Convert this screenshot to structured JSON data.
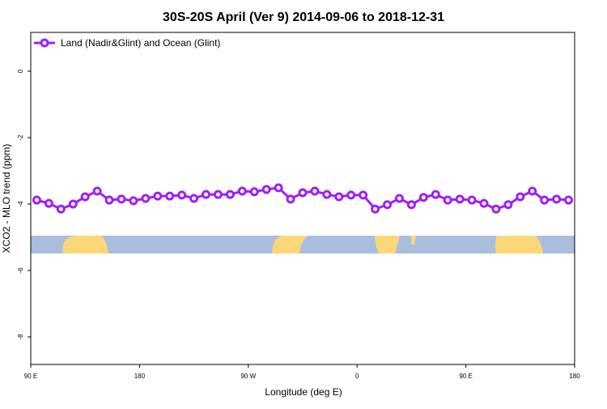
{
  "chart_data": {
    "type": "line",
    "title": "30S-20S April (Ver 9)   2014-09-06 to 2018-12-31",
    "x_label": "Longitude (deg E)",
    "y_label": "XCO2 - MLO trend (ppm)",
    "x": [
      95,
      105,
      115,
      125,
      135,
      145,
      155,
      165,
      175,
      185,
      195,
      205,
      215,
      225,
      235,
      245,
      255,
      265,
      275,
      285,
      295,
      305,
      315,
      325,
      335,
      345,
      355,
      365,
      375,
      385,
      395,
      405,
      415,
      425,
      435,
      445,
      455,
      465,
      475,
      485,
      495,
      505,
      515,
      525,
      535
    ],
    "series": [
      {
        "name": "Land (Nadir&Glint) and Ocean (Glint)",
        "color": "#a020f0",
        "values": [
          -3.88,
          -3.98,
          -4.15,
          -4.0,
          -3.78,
          -3.61,
          -3.88,
          -3.85,
          -3.9,
          -3.83,
          -3.76,
          -3.76,
          -3.73,
          -3.83,
          -3.71,
          -3.71,
          -3.71,
          -3.61,
          -3.63,
          -3.56,
          -3.51,
          -3.85,
          -3.66,
          -3.61,
          -3.71,
          -3.78,
          -3.73,
          -3.73,
          -4.15,
          -4.02,
          -3.83,
          -4.02,
          -3.8,
          -3.71,
          -3.88,
          -3.85,
          -3.88,
          -3.98,
          -4.15,
          -4.02,
          -3.78,
          -3.61,
          -3.88,
          -3.85,
          -3.88
        ]
      }
    ],
    "xlim": [
      90,
      540
    ],
    "xticks": [
      {
        "value": 90,
        "label": "90 E"
      },
      {
        "value": 180,
        "label": "180"
      },
      {
        "value": 270,
        "label": "90 W"
      },
      {
        "value": 360,
        "label": "0"
      },
      {
        "value": 450,
        "label": "90 E"
      },
      {
        "value": 540,
        "label": "180"
      }
    ],
    "ylim": [
      -8.83,
      1.17
    ],
    "yticks": [
      0,
      -2,
      -4,
      -6,
      -8
    ],
    "legend": "top-left"
  }
}
